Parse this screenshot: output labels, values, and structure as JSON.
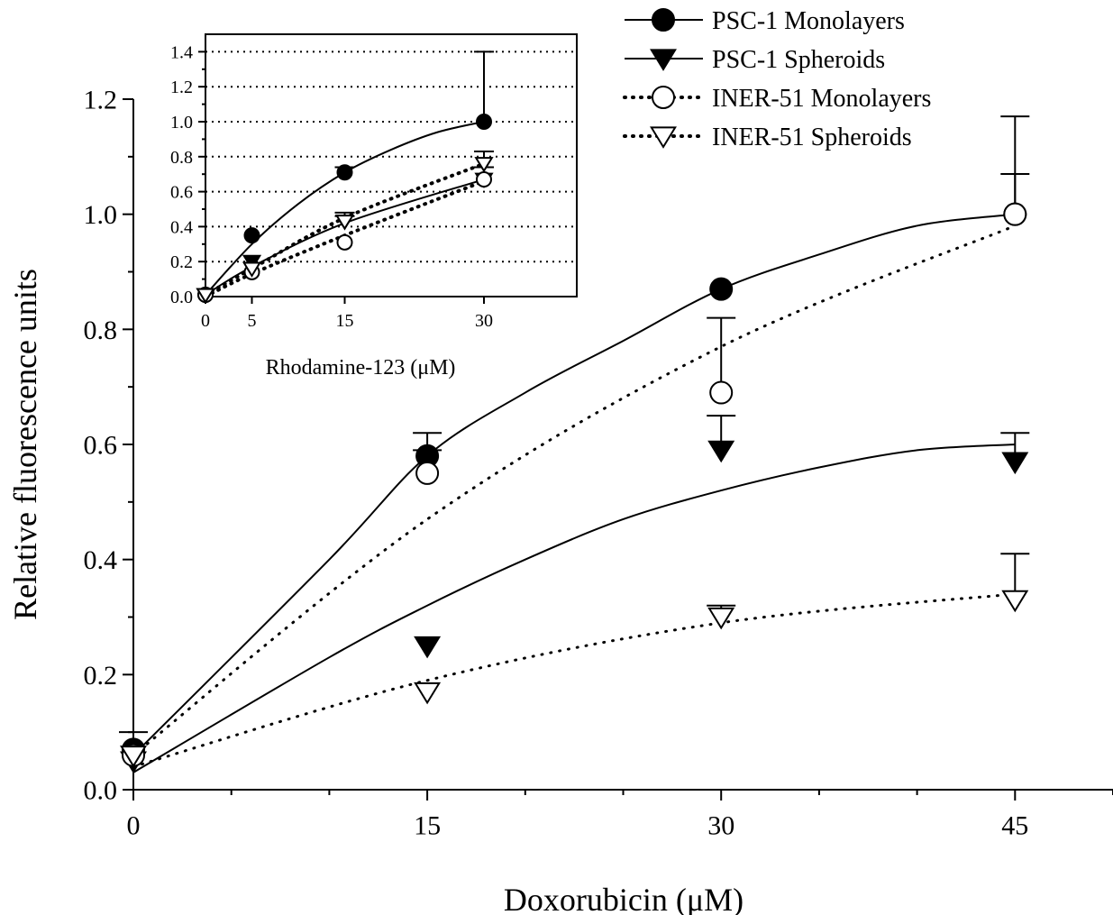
{
  "chart_data": [
    {
      "type": "scatter",
      "role": "main",
      "xlabel": "Doxorubicin (μM)",
      "ylabel": "Relative fluorescence units",
      "xticks": [
        0,
        15,
        30,
        45
      ],
      "yticks": [
        0.0,
        0.2,
        0.4,
        0.6,
        0.8,
        1.0,
        1.2
      ],
      "ytick_labels": [
        "0.0",
        "0.2",
        "0.4",
        "0.6",
        "0.8",
        "1.0",
        "1.2"
      ],
      "xlim": [
        0,
        50
      ],
      "ylim": [
        0,
        1.2
      ],
      "grid": false,
      "legend_position": "top-right",
      "series": [
        {
          "name": "PSC-1 Monolayers",
          "marker": "filled-circle",
          "line": "solid",
          "x": [
            0,
            15,
            30,
            45
          ],
          "y": [
            0.07,
            0.58,
            0.87,
            1.0
          ],
          "error": [
            0.03,
            0.04,
            0.0,
            0.07
          ],
          "fit": [
            [
              0,
              0.06
            ],
            [
              10,
              0.4
            ],
            [
              15,
              0.58
            ],
            [
              20,
              0.69
            ],
            [
              25,
              0.78
            ],
            [
              30,
              0.87
            ],
            [
              35,
              0.93
            ],
            [
              40,
              0.98
            ],
            [
              45,
              1.0
            ]
          ]
        },
        {
          "name": "PSC-1 Spheroids",
          "marker": "filled-triangle-down",
          "line": "solid",
          "x": [
            0,
            15,
            30,
            45
          ],
          "y": [
            0.05,
            0.25,
            0.59,
            0.57
          ],
          "error": [
            0.0,
            0.0,
            0.06,
            0.05
          ],
          "fit": [
            [
              0,
              0.03
            ],
            [
              10,
              0.23
            ],
            [
              15,
              0.32
            ],
            [
              20,
              0.4
            ],
            [
              25,
              0.47
            ],
            [
              30,
              0.52
            ],
            [
              35,
              0.56
            ],
            [
              40,
              0.59
            ],
            [
              45,
              0.6
            ]
          ]
        },
        {
          "name": "INER-51 Monolayers",
          "marker": "open-circle",
          "line": "dotted",
          "x": [
            0,
            15,
            30,
            45
          ],
          "y": [
            0.06,
            0.55,
            0.69,
            1.0
          ],
          "error": [
            0.0,
            0.04,
            0.13,
            0.17
          ],
          "fit": [
            [
              0,
              0.06
            ],
            [
              15,
              0.47
            ],
            [
              30,
              0.77
            ],
            [
              45,
              0.98
            ]
          ]
        },
        {
          "name": "INER-51 Spheroids",
          "marker": "open-triangle-down",
          "line": "dotted",
          "x": [
            0,
            15,
            30,
            45
          ],
          "y": [
            0.06,
            0.17,
            0.3,
            0.33
          ],
          "error": [
            0.0,
            0.0,
            0.02,
            0.08
          ],
          "fit": [
            [
              0,
              0.04
            ],
            [
              15,
              0.19
            ],
            [
              30,
              0.29
            ],
            [
              45,
              0.34
            ]
          ]
        }
      ]
    },
    {
      "type": "scatter",
      "role": "inset",
      "xlabel": "Rhodamine-123 (μM)",
      "ylabel": "",
      "xticks": [
        0,
        5,
        15,
        30
      ],
      "yticks": [
        0.0,
        0.2,
        0.4,
        0.6,
        0.8,
        1.0,
        1.2,
        1.4
      ],
      "ytick_labels": [
        "0.0",
        "0.2",
        "0.4",
        "0.6",
        "0.8",
        "1.0",
        "1.2",
        "1.4"
      ],
      "xlim": [
        0,
        40
      ],
      "ylim": [
        0,
        1.5
      ],
      "grid": true,
      "series": [
        {
          "name": "PSC-1 Monolayers",
          "x": [
            0,
            5,
            15,
            30
          ],
          "y": [
            0.01,
            0.35,
            0.71,
            1.0
          ],
          "error": [
            0.0,
            0.0,
            0.03,
            0.4
          ],
          "fit": [
            [
              0,
              0.01
            ],
            [
              5,
              0.3
            ],
            [
              10,
              0.53
            ],
            [
              15,
              0.71
            ],
            [
              20,
              0.84
            ],
            [
              25,
              0.94
            ],
            [
              30,
              1.0
            ]
          ]
        },
        {
          "name": "PSC-1 Spheroids",
          "x": [
            0,
            5,
            15,
            30
          ],
          "y": [
            0.01,
            0.2,
            0.43,
            0.67
          ],
          "error": [
            0.0,
            0.0,
            0.03,
            0.07
          ],
          "fit": [
            [
              0,
              0.01
            ],
            [
              5,
              0.17
            ],
            [
              15,
              0.42
            ],
            [
              30,
              0.67
            ]
          ]
        },
        {
          "name": "INER-51 Monolayers",
          "x": [
            0,
            5,
            15,
            30
          ],
          "y": [
            0.01,
            0.14,
            0.31,
            0.67
          ],
          "error": [
            0.0,
            0.0,
            0.0,
            0.07
          ],
          "fit": [
            [
              0,
              0.0
            ],
            [
              5,
              0.13
            ],
            [
              15,
              0.35
            ],
            [
              30,
              0.66
            ]
          ]
        },
        {
          "name": "INER-51 Spheroids",
          "x": [
            0,
            5,
            15,
            30
          ],
          "y": [
            0.01,
            0.16,
            0.43,
            0.76
          ],
          "error": [
            0.0,
            0.0,
            0.05,
            0.07
          ],
          "fit": [
            [
              0,
              0.01
            ],
            [
              5,
              0.16
            ],
            [
              15,
              0.45
            ],
            [
              30,
              0.76
            ]
          ]
        }
      ]
    }
  ]
}
